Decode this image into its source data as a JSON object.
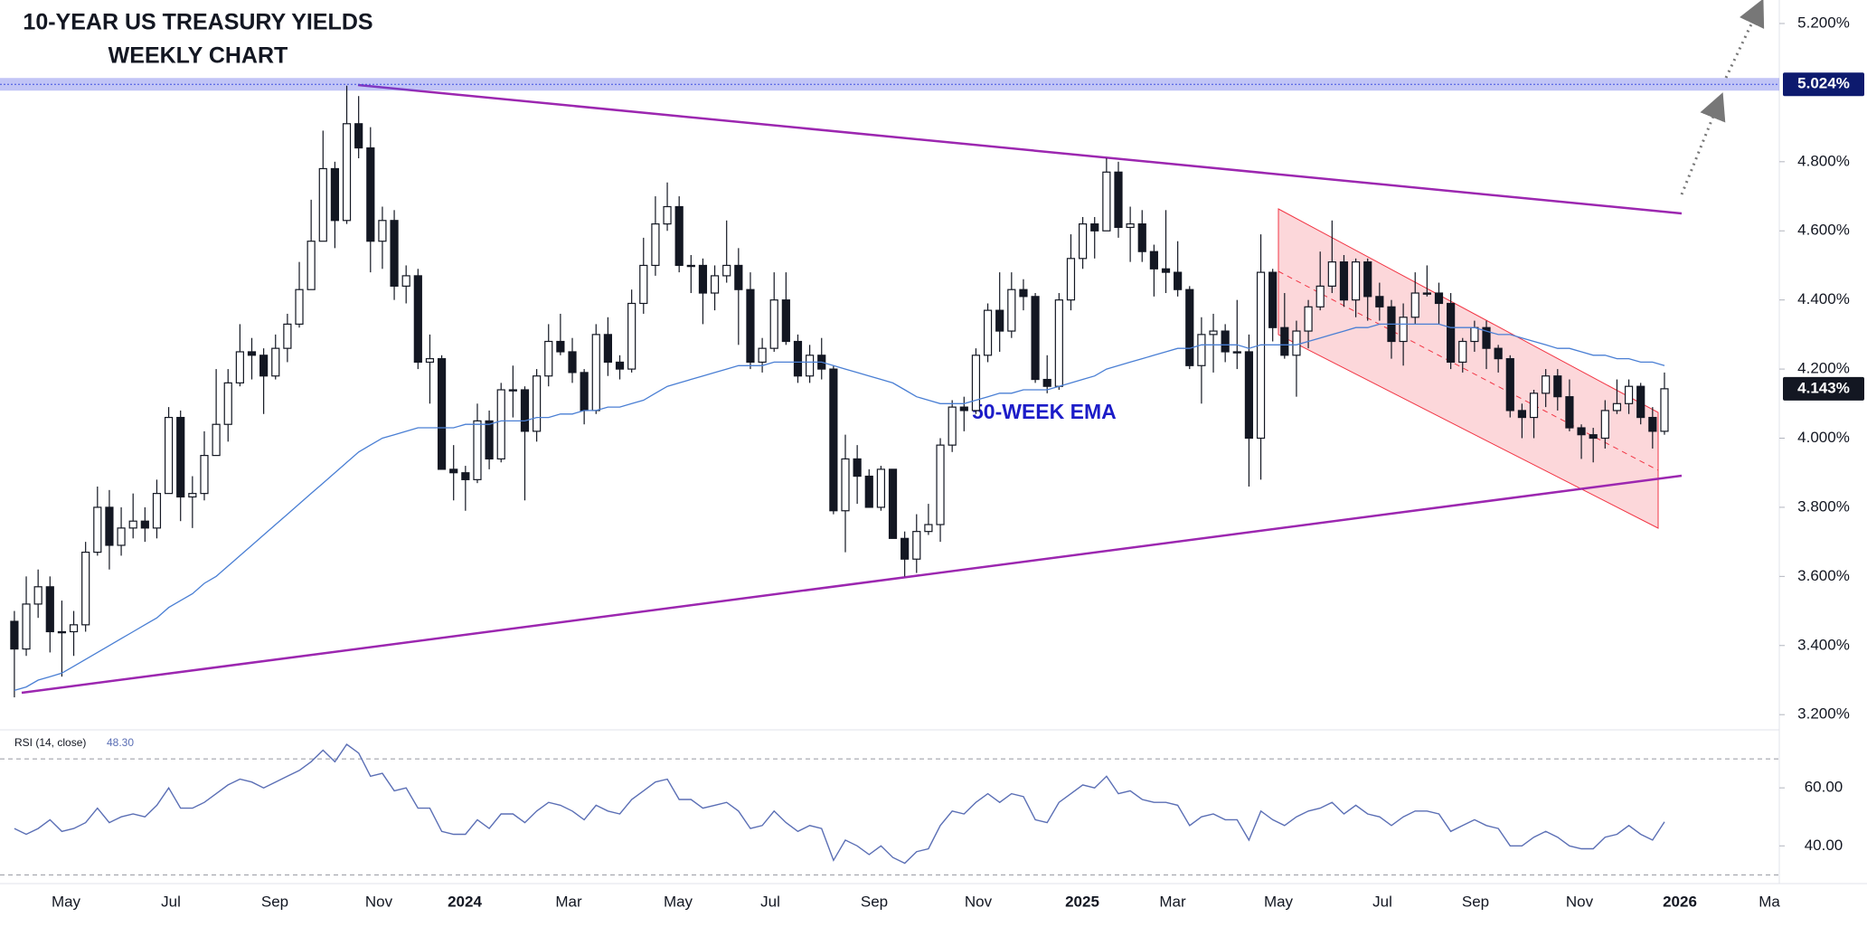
{
  "chart_data": {
    "type": "candlestick",
    "title": "10-YEAR US TREASURY YIELDS",
    "subtitle": "WEEKLY CHART",
    "candles": [
      [
        3.47,
        3.5,
        3.25,
        3.39
      ],
      [
        3.39,
        3.6,
        3.37,
        3.52
      ],
      [
        3.52,
        3.62,
        3.48,
        3.57
      ],
      [
        3.57,
        3.6,
        3.38,
        3.44
      ],
      [
        3.44,
        3.53,
        3.31,
        3.44
      ],
      [
        3.44,
        3.5,
        3.37,
        3.46
      ],
      [
        3.46,
        3.7,
        3.44,
        3.67
      ],
      [
        3.67,
        3.86,
        3.66,
        3.8
      ],
      [
        3.8,
        3.85,
        3.62,
        3.69
      ],
      [
        3.69,
        3.8,
        3.66,
        3.74
      ],
      [
        3.74,
        3.84,
        3.71,
        3.76
      ],
      [
        3.76,
        3.8,
        3.7,
        3.74
      ],
      [
        3.74,
        3.88,
        3.71,
        3.84
      ],
      [
        3.84,
        4.09,
        3.84,
        4.06
      ],
      [
        4.06,
        4.08,
        3.76,
        3.83
      ],
      [
        3.83,
        3.89,
        3.74,
        3.84
      ],
      [
        3.84,
        4.02,
        3.82,
        3.95
      ],
      [
        3.95,
        4.2,
        3.95,
        4.04
      ],
      [
        4.04,
        4.2,
        3.99,
        4.16
      ],
      [
        4.16,
        4.33,
        4.15,
        4.25
      ],
      [
        4.25,
        4.29,
        4.17,
        4.24
      ],
      [
        4.24,
        4.26,
        4.07,
        4.18
      ],
      [
        4.18,
        4.3,
        4.17,
        4.26
      ],
      [
        4.26,
        4.36,
        4.22,
        4.33
      ],
      [
        4.33,
        4.51,
        4.32,
        4.43
      ],
      [
        4.43,
        4.69,
        4.43,
        4.57
      ],
      [
        4.57,
        4.89,
        4.57,
        4.78
      ],
      [
        4.78,
        4.8,
        4.55,
        4.63
      ],
      [
        4.63,
        5.02,
        4.62,
        4.91
      ],
      [
        4.91,
        4.99,
        4.81,
        4.84
      ],
      [
        4.84,
        4.9,
        4.48,
        4.57
      ],
      [
        4.57,
        4.67,
        4.49,
        4.63
      ],
      [
        4.63,
        4.66,
        4.4,
        4.44
      ],
      [
        4.44,
        4.5,
        4.39,
        4.47
      ],
      [
        4.47,
        4.49,
        4.2,
        4.22
      ],
      [
        4.22,
        4.3,
        4.1,
        4.23
      ],
      [
        4.23,
        4.24,
        3.91,
        3.91
      ],
      [
        3.91,
        3.98,
        3.82,
        3.9
      ],
      [
        3.9,
        3.92,
        3.79,
        3.88
      ],
      [
        3.88,
        4.1,
        3.87,
        4.05
      ],
      [
        4.05,
        4.08,
        3.91,
        3.94
      ],
      [
        3.94,
        4.16,
        3.93,
        4.14
      ],
      [
        4.14,
        4.21,
        4.06,
        4.14
      ],
      [
        4.14,
        4.15,
        3.82,
        4.02
      ],
      [
        4.02,
        4.2,
        3.99,
        4.18
      ],
      [
        4.18,
        4.33,
        4.15,
        4.28
      ],
      [
        4.28,
        4.36,
        4.24,
        4.25
      ],
      [
        4.25,
        4.29,
        4.16,
        4.19
      ],
      [
        4.19,
        4.2,
        4.04,
        4.08
      ],
      [
        4.08,
        4.33,
        4.07,
        4.3
      ],
      [
        4.3,
        4.35,
        4.18,
        4.22
      ],
      [
        4.22,
        4.24,
        4.17,
        4.2
      ],
      [
        4.2,
        4.43,
        4.19,
        4.39
      ],
      [
        4.39,
        4.58,
        4.36,
        4.5
      ],
      [
        4.5,
        4.7,
        4.47,
        4.62
      ],
      [
        4.62,
        4.74,
        4.6,
        4.67
      ],
      [
        4.67,
        4.7,
        4.48,
        4.5
      ],
      [
        4.5,
        4.53,
        4.42,
        4.5
      ],
      [
        4.5,
        4.52,
        4.33,
        4.42
      ],
      [
        4.42,
        4.5,
        4.37,
        4.47
      ],
      [
        4.47,
        4.63,
        4.45,
        4.5
      ],
      [
        4.5,
        4.55,
        4.27,
        4.43
      ],
      [
        4.43,
        4.48,
        4.2,
        4.22
      ],
      [
        4.22,
        4.29,
        4.19,
        4.26
      ],
      [
        4.26,
        4.48,
        4.25,
        4.4
      ],
      [
        4.4,
        4.48,
        4.27,
        4.28
      ],
      [
        4.28,
        4.3,
        4.16,
        4.18
      ],
      [
        4.18,
        4.27,
        4.16,
        4.24
      ],
      [
        4.24,
        4.29,
        4.17,
        4.2
      ],
      [
        4.2,
        4.21,
        3.78,
        3.79
      ],
      [
        3.79,
        4.01,
        3.67,
        3.94
      ],
      [
        3.94,
        3.98,
        3.81,
        3.89
      ],
      [
        3.89,
        3.91,
        3.8,
        3.8
      ],
      [
        3.8,
        3.92,
        3.79,
        3.91
      ],
      [
        3.91,
        3.91,
        3.71,
        3.71
      ],
      [
        3.71,
        3.73,
        3.6,
        3.65
      ],
      [
        3.65,
        3.78,
        3.61,
        3.73
      ],
      [
        3.73,
        3.81,
        3.72,
        3.75
      ],
      [
        3.75,
        4.0,
        3.7,
        3.98
      ],
      [
        3.98,
        4.11,
        3.96,
        4.09
      ],
      [
        4.09,
        4.12,
        4.02,
        4.08
      ],
      [
        4.08,
        4.26,
        4.07,
        4.24
      ],
      [
        4.24,
        4.39,
        4.22,
        4.37
      ],
      [
        4.37,
        4.48,
        4.25,
        4.31
      ],
      [
        4.31,
        4.48,
        4.29,
        4.43
      ],
      [
        4.43,
        4.46,
        4.37,
        4.41
      ],
      [
        4.41,
        4.42,
        4.16,
        4.17
      ],
      [
        4.17,
        4.24,
        4.13,
        4.15
      ],
      [
        4.15,
        4.42,
        4.14,
        4.4
      ],
      [
        4.4,
        4.59,
        4.37,
        4.52
      ],
      [
        4.52,
        4.64,
        4.49,
        4.62
      ],
      [
        4.62,
        4.64,
        4.52,
        4.6
      ],
      [
        4.6,
        4.81,
        4.6,
        4.77
      ],
      [
        4.77,
        4.8,
        4.58,
        4.61
      ],
      [
        4.61,
        4.67,
        4.51,
        4.62
      ],
      [
        4.62,
        4.66,
        4.51,
        4.54
      ],
      [
        4.54,
        4.56,
        4.41,
        4.49
      ],
      [
        4.49,
        4.66,
        4.42,
        4.48
      ],
      [
        4.48,
        4.57,
        4.41,
        4.43
      ],
      [
        4.43,
        4.44,
        4.2,
        4.21
      ],
      [
        4.21,
        4.35,
        4.1,
        4.3
      ],
      [
        4.3,
        4.36,
        4.19,
        4.31
      ],
      [
        4.31,
        4.33,
        4.22,
        4.25
      ],
      [
        4.25,
        4.4,
        4.2,
        4.25
      ],
      [
        4.25,
        4.3,
        3.86,
        4.0
      ],
      [
        4.0,
        4.59,
        3.88,
        4.48
      ],
      [
        4.48,
        4.49,
        4.28,
        4.32
      ],
      [
        4.32,
        4.42,
        4.23,
        4.24
      ],
      [
        4.24,
        4.34,
        4.12,
        4.31
      ],
      [
        4.31,
        4.4,
        4.26,
        4.38
      ],
      [
        4.38,
        4.54,
        4.37,
        4.44
      ],
      [
        4.44,
        4.63,
        4.42,
        4.51
      ],
      [
        4.51,
        4.53,
        4.38,
        4.4
      ],
      [
        4.4,
        4.52,
        4.35,
        4.51
      ],
      [
        4.51,
        4.52,
        4.34,
        4.41
      ],
      [
        4.41,
        4.45,
        4.34,
        4.38
      ],
      [
        4.38,
        4.4,
        4.23,
        4.28
      ],
      [
        4.28,
        4.39,
        4.21,
        4.35
      ],
      [
        4.35,
        4.48,
        4.33,
        4.42
      ],
      [
        4.42,
        4.5,
        4.41,
        4.42
      ],
      [
        4.42,
        4.45,
        4.33,
        4.39
      ],
      [
        4.39,
        4.42,
        4.2,
        4.22
      ],
      [
        4.22,
        4.29,
        4.19,
        4.28
      ],
      [
        4.28,
        4.34,
        4.25,
        4.32
      ],
      [
        4.32,
        4.34,
        4.2,
        4.26
      ],
      [
        4.26,
        4.27,
        4.19,
        4.23
      ],
      [
        4.23,
        4.24,
        4.06,
        4.08
      ],
      [
        4.08,
        4.1,
        4.0,
        4.06
      ],
      [
        4.06,
        4.14,
        4.0,
        4.13
      ],
      [
        4.13,
        4.2,
        4.09,
        4.18
      ],
      [
        4.18,
        4.2,
        4.08,
        4.12
      ],
      [
        4.12,
        4.17,
        4.02,
        4.03
      ],
      [
        4.03,
        4.04,
        3.94,
        4.01
      ],
      [
        4.01,
        4.03,
        3.93,
        4.0
      ],
      [
        4.0,
        4.11,
        3.97,
        4.08
      ],
      [
        4.08,
        4.17,
        4.07,
        4.1
      ],
      [
        4.1,
        4.17,
        4.07,
        4.15
      ],
      [
        4.15,
        4.16,
        4.04,
        4.06
      ],
      [
        4.06,
        4.09,
        3.97,
        4.02
      ],
      [
        4.02,
        4.19,
        4.01,
        4.143
      ]
    ],
    "ema": {
      "name": "50-WEEK EMA",
      "color": "#4a7fd4",
      "values": [
        3.27,
        3.28,
        3.3,
        3.31,
        3.32,
        3.34,
        3.36,
        3.38,
        3.4,
        3.42,
        3.44,
        3.46,
        3.48,
        3.51,
        3.53,
        3.55,
        3.58,
        3.6,
        3.63,
        3.66,
        3.69,
        3.72,
        3.75,
        3.78,
        3.81,
        3.84,
        3.87,
        3.9,
        3.93,
        3.96,
        3.98,
        4.0,
        4.01,
        4.02,
        4.03,
        4.03,
        4.03,
        4.03,
        4.04,
        4.04,
        4.04,
        4.05,
        4.05,
        4.05,
        4.06,
        4.06,
        4.07,
        4.07,
        4.08,
        4.08,
        4.09,
        4.09,
        4.1,
        4.11,
        4.13,
        4.15,
        4.16,
        4.17,
        4.18,
        4.19,
        4.2,
        4.21,
        4.21,
        4.21,
        4.22,
        4.22,
        4.22,
        4.22,
        4.22,
        4.21,
        4.2,
        4.19,
        4.18,
        4.17,
        4.16,
        4.14,
        4.12,
        4.11,
        4.1,
        4.1,
        4.1,
        4.11,
        4.12,
        4.13,
        4.13,
        4.14,
        4.14,
        4.14,
        4.15,
        4.16,
        4.17,
        4.18,
        4.2,
        4.21,
        4.22,
        4.23,
        4.24,
        4.25,
        4.26,
        4.26,
        4.27,
        4.27,
        4.27,
        4.27,
        4.26,
        4.27,
        4.27,
        4.27,
        4.27,
        4.28,
        4.29,
        4.3,
        4.31,
        4.32,
        4.32,
        4.33,
        4.33,
        4.33,
        4.33,
        4.33,
        4.33,
        4.32,
        4.32,
        4.32,
        4.31,
        4.3,
        4.3,
        4.29,
        4.28,
        4.27,
        4.26,
        4.26,
        4.25,
        4.24,
        4.24,
        4.23,
        4.23,
        4.22,
        4.22,
        4.21
      ]
    },
    "ylim": [
      3.156,
      5.268
    ],
    "yticks": [
      {
        "value": 3.2,
        "label": "3.200%"
      },
      {
        "value": 3.4,
        "label": "3.400%"
      },
      {
        "value": 3.6,
        "label": "3.600%"
      },
      {
        "value": 3.8,
        "label": "3.800%"
      },
      {
        "value": 4.0,
        "label": "4.000%"
      },
      {
        "value": 4.2,
        "label": "4.200%"
      },
      {
        "value": 4.4,
        "label": "4.400%"
      },
      {
        "value": 4.6,
        "label": "4.600%"
      },
      {
        "value": 4.8,
        "label": "4.800%"
      },
      {
        "value": 5.2,
        "label": "5.200%"
      }
    ],
    "level": {
      "value": 5.024,
      "label": "5.024%"
    },
    "last": {
      "value": 4.143,
      "label": "4.143%"
    },
    "xtick_labels": [
      "May",
      "Jul",
      "Sep",
      "Nov",
      "2024",
      "Mar",
      "May",
      "Jul",
      "Sep",
      "Nov",
      "2025",
      "Mar",
      "May",
      "Jul",
      "Sep",
      "Nov",
      "2026",
      "Ma"
    ],
    "rsi": {
      "title": "RSI (14, close)",
      "current": "48.30",
      "color": "#5b6fb5",
      "ylim": [
        27,
        80
      ],
      "bands": [
        30,
        70
      ],
      "yticks": [
        {
          "value": 60,
          "label": "60.00"
        },
        {
          "value": 40,
          "label": "40.00"
        }
      ],
      "values": [
        46,
        44,
        46,
        49,
        45,
        46,
        48,
        53,
        48,
        50,
        51,
        50,
        54,
        60,
        53,
        53,
        55,
        58,
        61,
        63,
        62,
        60,
        62,
        64,
        66,
        69,
        73,
        69,
        75,
        72,
        64,
        65,
        59,
        60,
        53,
        53,
        45,
        44,
        44,
        49,
        46,
        51,
        51,
        48,
        52,
        55,
        54,
        52,
        49,
        54,
        52,
        51,
        56,
        59,
        62,
        63,
        56,
        56,
        53,
        54,
        55,
        52,
        46,
        47,
        52,
        48,
        45,
        47,
        46,
        35,
        42,
        40,
        37,
        40,
        36,
        34,
        38,
        39,
        47,
        52,
        51,
        55,
        58,
        55,
        58,
        57,
        49,
        48,
        55,
        58,
        61,
        60,
        64,
        58,
        59,
        56,
        55,
        55,
        54,
        47,
        50,
        51,
        49,
        49,
        42,
        52,
        49,
        47,
        50,
        52,
        53,
        55,
        51,
        54,
        51,
        50,
        47,
        50,
        52,
        52,
        51,
        45,
        47,
        49,
        47,
        46,
        40,
        40,
        43,
        45,
        43,
        40,
        39,
        39,
        43,
        44,
        47,
        44,
        42,
        48.3
      ]
    }
  }
}
